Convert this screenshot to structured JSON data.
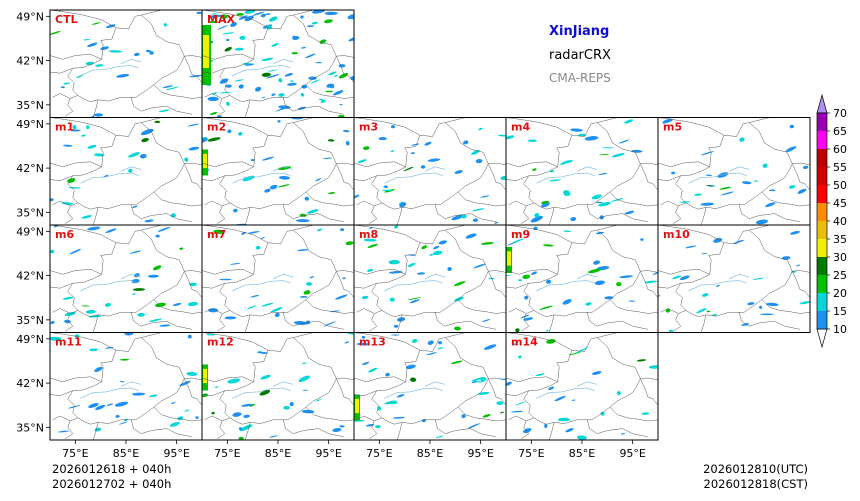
{
  "title": {
    "region": "XinJiang",
    "variable": "radarCRX",
    "model": "CMA-REPS",
    "region_color": "#1010cc",
    "model_color": "#888888"
  },
  "axes": {
    "lat_labels": [
      "49°N",
      "42°N",
      "35°N"
    ],
    "lon_labels": [
      "75°E",
      "85°E",
      "95°E"
    ]
  },
  "panels": [
    {
      "label": "CTL",
      "density": 0.45,
      "seed": 11
    },
    {
      "label": "MAX",
      "density": 1.6,
      "seed": 23
    },
    {
      "label": "m1",
      "density": 0.45,
      "seed": 31
    },
    {
      "label": "m2",
      "density": 0.5,
      "seed": 41
    },
    {
      "label": "m3",
      "density": 0.55,
      "seed": 53
    },
    {
      "label": "m4",
      "density": 0.55,
      "seed": 61
    },
    {
      "label": "m5",
      "density": 0.45,
      "seed": 71
    },
    {
      "label": "m6",
      "density": 0.55,
      "seed": 83
    },
    {
      "label": "m7",
      "density": 0.5,
      "seed": 97
    },
    {
      "label": "m8",
      "density": 0.55,
      "seed": 101
    },
    {
      "label": "m9",
      "density": 0.55,
      "seed": 113
    },
    {
      "label": "m10",
      "density": 0.45,
      "seed": 127
    },
    {
      "label": "m11",
      "density": 0.5,
      "seed": 131
    },
    {
      "label": "m12",
      "density": 0.5,
      "seed": 139
    },
    {
      "label": "m13",
      "density": 0.65,
      "seed": 149
    },
    {
      "label": "m14",
      "density": 0.45,
      "seed": 157
    }
  ],
  "panel_label_color": "#e01010",
  "colorbar": {
    "levels": [
      10,
      15,
      20,
      25,
      30,
      35,
      40,
      45,
      50,
      55,
      60,
      65,
      70
    ],
    "colors": [
      "#1e90f0",
      "#00d8d8",
      "#00c000",
      "#007a00",
      "#f0f000",
      "#e8c000",
      "#ff8c00",
      "#ff0000",
      "#d40000",
      "#c00000",
      "#ff00f0",
      "#9900b4",
      "#ad90f0"
    ],
    "under_color": "#ffffff"
  },
  "footer": {
    "init_line1": "2026012618  +  040h",
    "init_line2": "2026012702  +  040h",
    "valid_utc": "2026012810(UTC)",
    "valid_cst": "2026012818(CST)"
  }
}
